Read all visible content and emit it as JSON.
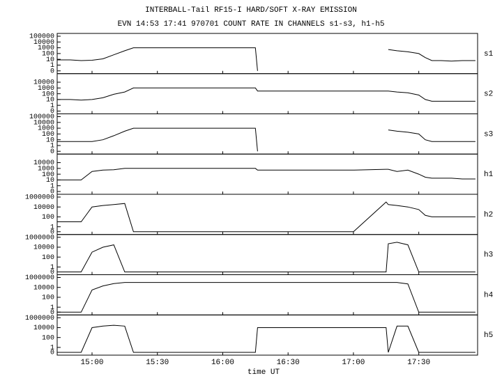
{
  "chart_data": {
    "type": "line",
    "title": "INTERBALL-Tail RF15-I HARD/SOFT X-RAY EMISSION",
    "subtitle": "EVN 14:53 17:41 970701  COUNT RATE IN CHANNELS s1-s3, h1-h5",
    "xlabel": "time UT",
    "yscale": "log",
    "grid": false,
    "color": "#000000",
    "xlim": [
      884,
      1077
    ],
    "xticks": [
      {
        "value": 900,
        "label": "15:00"
      },
      {
        "value": 930,
        "label": "15:30"
      },
      {
        "value": 960,
        "label": "16:00"
      },
      {
        "value": 990,
        "label": "16:30"
      },
      {
        "value": 1020,
        "label": "17:00"
      },
      {
        "value": 1050,
        "label": "17:30"
      }
    ],
    "x": [
      884,
      890,
      895,
      900,
      905,
      910,
      915,
      919,
      925,
      940,
      960,
      975,
      976,
      990,
      1005,
      1020,
      1035,
      1036,
      1040,
      1045,
      1050,
      1053,
      1056,
      1060,
      1065,
      1070,
      1076
    ],
    "series": [
      {
        "name": "s1",
        "ylim": [
          0,
          100000
        ],
        "yticks": [
          0,
          1,
          10,
          100,
          1000,
          10000,
          100000
        ],
        "values": [
          8,
          8,
          6,
          7,
          12,
          60,
          300,
          1000,
          1000,
          1000,
          1000,
          1000,
          0,
          null,
          null,
          null,
          null,
          500,
          300,
          200,
          100,
          20,
          6,
          6,
          5,
          6,
          6
        ]
      },
      {
        "name": "s2",
        "ylim": [
          0,
          100000
        ],
        "yticks": [
          0,
          1,
          10,
          100,
          1000,
          10000
        ],
        "values": [
          10,
          10,
          8,
          10,
          20,
          80,
          200,
          1000,
          1000,
          1000,
          1000,
          1000,
          300,
          300,
          300,
          300,
          300,
          300,
          200,
          150,
          60,
          10,
          5,
          5,
          5,
          5,
          5
        ]
      },
      {
        "name": "s3",
        "ylim": [
          0,
          100000
        ],
        "yticks": [
          0,
          1,
          10,
          100,
          1000,
          10000,
          100000
        ],
        "values": [
          5,
          5,
          5,
          5,
          10,
          50,
          300,
          1000,
          1000,
          1000,
          1000,
          1000,
          0,
          null,
          null,
          null,
          null,
          500,
          300,
          200,
          100,
          10,
          5,
          5,
          5,
          5,
          5
        ]
      },
      {
        "name": "h1",
        "ylim": [
          0,
          100000
        ],
        "yticks": [
          0,
          1,
          10,
          100,
          1000,
          10000
        ],
        "values": [
          10,
          10,
          10,
          300,
          500,
          600,
          1000,
          1000,
          1000,
          1000,
          1000,
          1000,
          500,
          500,
          500,
          500,
          700,
          700,
          300,
          500,
          100,
          30,
          20,
          20,
          20,
          15,
          15
        ]
      },
      {
        "name": "h2",
        "ylim": [
          0,
          1000000
        ],
        "yticks": [
          0,
          1,
          100,
          10000,
          1000000
        ],
        "values": [
          10,
          10,
          10,
          10000,
          20000,
          30000,
          50000,
          0,
          0,
          0,
          0,
          0,
          0,
          0,
          0,
          0,
          100000,
          30000,
          20000,
          10000,
          3000,
          200,
          100,
          100,
          100,
          100,
          100
        ]
      },
      {
        "name": "h3",
        "ylim": [
          0,
          1000000
        ],
        "yticks": [
          0,
          1,
          100,
          10000,
          1000000
        ],
        "values": [
          0,
          0,
          0,
          1000,
          10000,
          30000,
          0,
          0,
          0,
          0,
          0,
          0,
          0,
          0,
          0,
          0,
          0,
          50000,
          100000,
          30000,
          0,
          0,
          0,
          0,
          0,
          0,
          0
        ]
      },
      {
        "name": "h4",
        "ylim": [
          0,
          1000000
        ],
        "yticks": [
          0,
          1,
          100,
          10000,
          1000000
        ],
        "values": [
          0,
          0,
          0,
          3000,
          20000,
          60000,
          100000,
          100000,
          100000,
          100000,
          100000,
          100000,
          100000,
          100000,
          100000,
          100000,
          100000,
          100000,
          100000,
          50000,
          0,
          0,
          0,
          0,
          0,
          0,
          0
        ]
      },
      {
        "name": "h5",
        "ylim": [
          0,
          1000000
        ],
        "yticks": [
          0,
          1,
          100,
          10000,
          1000000
        ],
        "values": [
          0,
          0,
          0,
          10000,
          20000,
          30000,
          20000,
          0,
          0,
          0,
          0,
          0,
          10000,
          10000,
          10000,
          10000,
          10000,
          0,
          20000,
          20000,
          0,
          0,
          0,
          0,
          0,
          0,
          0
        ]
      }
    ]
  }
}
